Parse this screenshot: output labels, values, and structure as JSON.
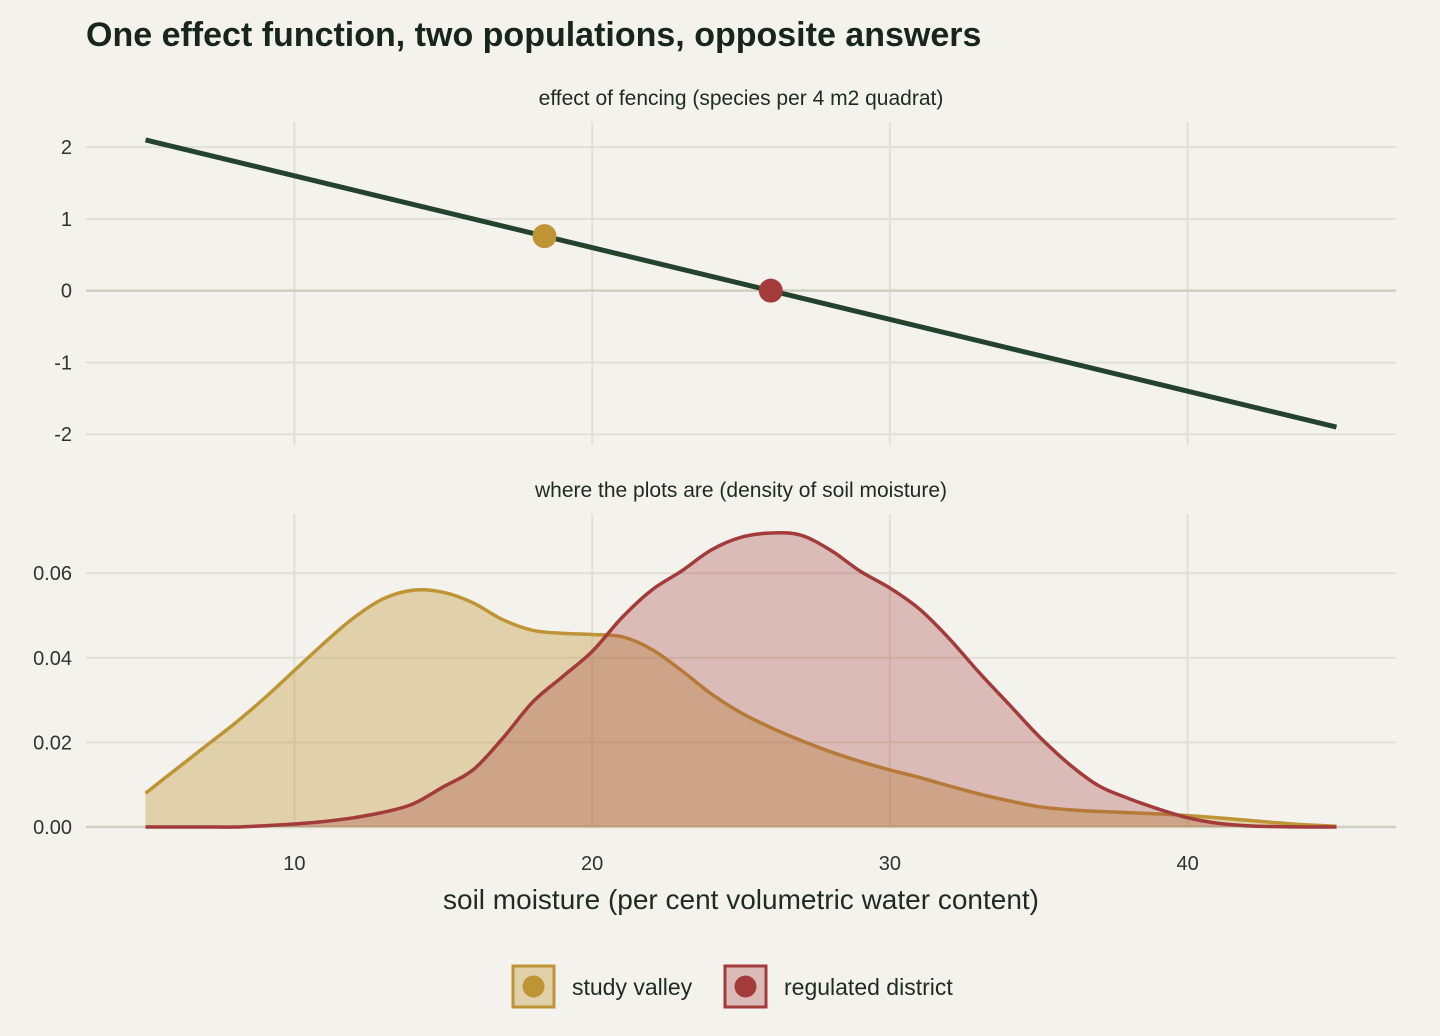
{
  "chart_data": {
    "title": "One effect function, two populations, opposite answers",
    "xlabel": "soil moisture (per cent volumetric water content)",
    "x_ticks": [
      10,
      20,
      30,
      40
    ],
    "xlim": [
      3,
      47
    ],
    "legend": {
      "position": "bottom",
      "entries": [
        {
          "label": "study valley",
          "color": "#bf9435"
        },
        {
          "label": "regulated district",
          "color": "#a33b3b"
        }
      ]
    },
    "panels": [
      {
        "type": "line",
        "title": "effect of fencing (species per 4 m2 quadrat)",
        "ylim": [
          -2.15,
          2.35
        ],
        "y_ticks": [
          2,
          1,
          0,
          -1,
          -2
        ],
        "y_tick_labels": [
          "2",
          "1",
          "0",
          "-1",
          "-2"
        ],
        "line": {
          "x": [
            5,
            45
          ],
          "y": [
            2.1,
            -1.9
          ],
          "color": "#23432f"
        },
        "points": [
          {
            "series": "study valley",
            "x": 18.4,
            "y": 0.76,
            "color": "#bf9435"
          },
          {
            "series": "regulated district",
            "x": 26.0,
            "y": 0.0,
            "color": "#a33b3b"
          }
        ]
      },
      {
        "type": "area",
        "title": "where the plots are (density of soil moisture)",
        "ylim": [
          0,
          0.074
        ],
        "y_ticks": [
          0.0,
          0.02,
          0.04,
          0.06
        ],
        "y_tick_labels": [
          "0.00",
          "0.02",
          "0.04",
          "0.06"
        ],
        "x": [
          5,
          6,
          7,
          8,
          9,
          10,
          11,
          12,
          13,
          14,
          15,
          16,
          17,
          18,
          19,
          20,
          21,
          22,
          23,
          24,
          25,
          26,
          27,
          28,
          29,
          30,
          31,
          32,
          33,
          34,
          35,
          36,
          37,
          38,
          39,
          40,
          41,
          42,
          43,
          44,
          45
        ],
        "series": [
          {
            "name": "study valley",
            "fill": "#bf9435",
            "fill_opacity": 0.35,
            "stroke": "#bf9435",
            "values": [
              0.008,
              0.0135,
              0.019,
              0.0245,
              0.0305,
              0.037,
              0.0435,
              0.0495,
              0.054,
              0.056,
              0.0555,
              0.053,
              0.049,
              0.0465,
              0.0458,
              0.0455,
              0.045,
              0.042,
              0.037,
              0.0315,
              0.027,
              0.0235,
              0.0205,
              0.0178,
              0.0155,
              0.0135,
              0.0117,
              0.0097,
              0.0078,
              0.0062,
              0.0048,
              0.0041,
              0.0037,
              0.0034,
              0.0031,
              0.0027,
              0.0022,
              0.0016,
              0.001,
              0.0005,
              0.0002
            ]
          },
          {
            "name": "regulated district",
            "fill": "#a33b3b",
            "fill_opacity": 0.3,
            "stroke": "#a33b3b",
            "values": [
              0.0,
              0.0,
              0.0,
              0.0,
              0.0003,
              0.0007,
              0.0013,
              0.0022,
              0.0035,
              0.0055,
              0.0095,
              0.0135,
              0.021,
              0.0295,
              0.0355,
              0.0415,
              0.0495,
              0.056,
              0.0605,
              0.0655,
              0.0685,
              0.0695,
              0.069,
              0.0655,
              0.0605,
              0.0565,
              0.0515,
              0.0445,
              0.0365,
              0.029,
              0.0215,
              0.015,
              0.0098,
              0.0068,
              0.0043,
              0.0022,
              0.0009,
              0.0003,
              0.0001,
              0.0,
              0.0
            ]
          }
        ]
      }
    ]
  }
}
